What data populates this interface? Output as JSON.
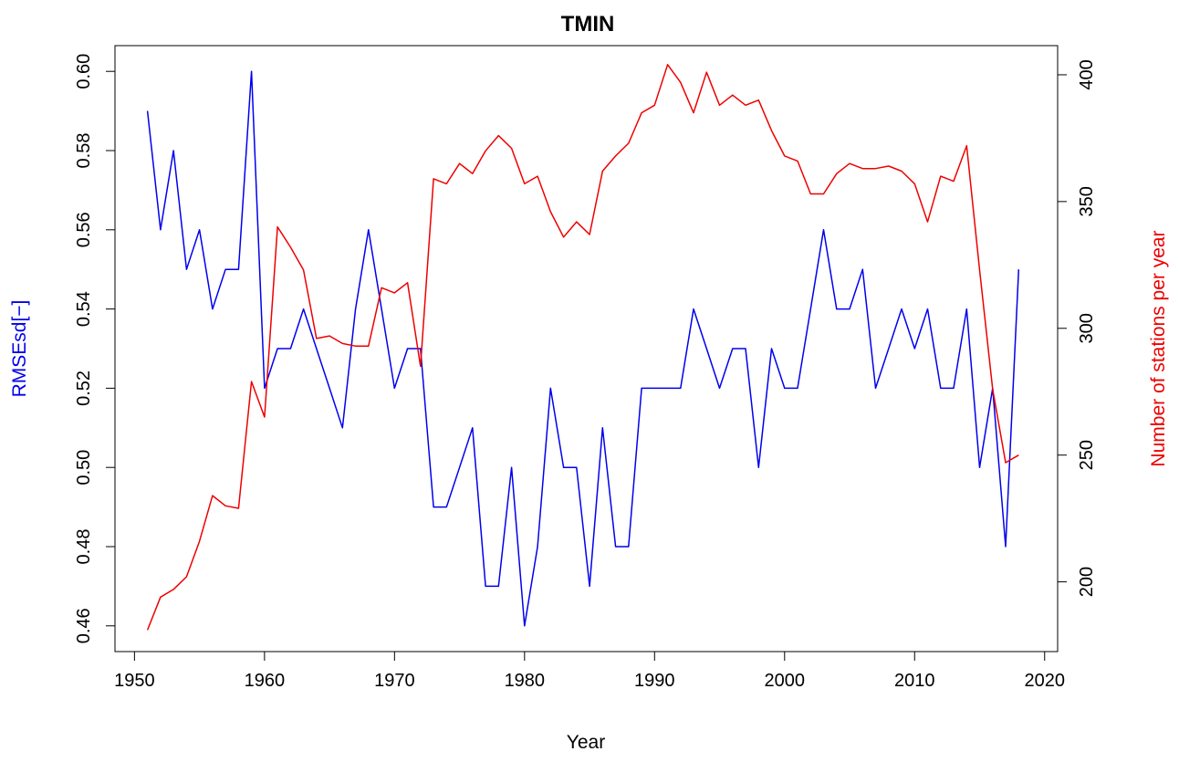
{
  "chart_data": {
    "type": "line",
    "title": "TMIN",
    "xlabel": "Year",
    "ylabel_left": "RMSEsd[−]",
    "ylabel_right": "Number of stations per year",
    "xlim": [
      1948.5,
      2021
    ],
    "xticks": [
      1950,
      1960,
      1970,
      1980,
      1990,
      2000,
      2010,
      2020
    ],
    "ylim_left": [
      0.4535,
      0.6065
    ],
    "yticks_left": [
      "0.46",
      "0.48",
      "0.50",
      "0.52",
      "0.54",
      "0.56",
      "0.58",
      "0.60"
    ],
    "ylim_right": [
      172.5,
      411.5
    ],
    "yticks_right": [
      "200",
      "250",
      "300",
      "350",
      "400"
    ],
    "grid": false,
    "series": [
      {
        "axis": "left",
        "color": "#0000ee",
        "x": [
          1951,
          1952,
          1953,
          1954,
          1955,
          1956,
          1957,
          1958,
          1959,
          1960,
          1961,
          1962,
          1963,
          1964,
          1965,
          1966,
          1967,
          1968,
          1969,
          1970,
          1971,
          1972,
          1973,
          1974,
          1975,
          1976,
          1977,
          1978,
          1979,
          1980,
          1981,
          1982,
          1983,
          1984,
          1985,
          1986,
          1987,
          1988,
          1989,
          1990,
          1991,
          1992,
          1993,
          1994,
          1995,
          1996,
          1997,
          1998,
          1999,
          2000,
          2001,
          2002,
          2003,
          2004,
          2005,
          2006,
          2007,
          2008,
          2009,
          2010,
          2011,
          2012,
          2013,
          2014,
          2015,
          2016,
          2017,
          2018
        ],
        "values": [
          0.59,
          0.56,
          0.58,
          0.55,
          0.56,
          0.54,
          0.55,
          0.55,
          0.6,
          0.52,
          0.53,
          0.53,
          0.54,
          0.53,
          0.52,
          0.51,
          0.54,
          0.56,
          0.54,
          0.52,
          0.53,
          0.53,
          0.49,
          0.49,
          0.5,
          0.51,
          0.47,
          0.47,
          0.5,
          0.46,
          0.48,
          0.52,
          0.5,
          0.5,
          0.47,
          0.51,
          0.48,
          0.48,
          0.52,
          0.52,
          0.52,
          0.52,
          0.54,
          0.53,
          0.52,
          0.53,
          0.53,
          0.5,
          0.53,
          0.52,
          0.52,
          0.54,
          0.56,
          0.54,
          0.54,
          0.55,
          0.52,
          0.53,
          0.54,
          0.53,
          0.54,
          0.52,
          0.52,
          0.54,
          0.5,
          0.52,
          0.48,
          0.55
        ]
      },
      {
        "axis": "right",
        "color": "#ee0000",
        "x": [
          1951,
          1952,
          1953,
          1954,
          1955,
          1956,
          1957,
          1958,
          1959,
          1960,
          1961,
          1962,
          1963,
          1964,
          1965,
          1966,
          1967,
          1968,
          1969,
          1970,
          1971,
          1972,
          1973,
          1974,
          1975,
          1976,
          1977,
          1978,
          1979,
          1980,
          1981,
          1982,
          1983,
          1984,
          1985,
          1986,
          1987,
          1988,
          1989,
          1990,
          1991,
          1992,
          1993,
          1994,
          1995,
          1996,
          1997,
          1998,
          1999,
          2000,
          2001,
          2002,
          2003,
          2004,
          2005,
          2006,
          2007,
          2008,
          2009,
          2010,
          2011,
          2012,
          2013,
          2014,
          2015,
          2016,
          2017,
          2018
        ],
        "values": [
          181,
          194,
          197,
          202,
          216,
          234,
          230,
          229,
          279,
          265,
          340,
          332,
          323,
          296,
          297,
          294,
          293,
          293,
          316,
          314,
          318,
          285,
          359,
          357,
          365,
          361,
          370,
          376,
          371,
          357,
          360,
          346,
          336,
          342,
          337,
          362,
          368,
          373,
          385,
          388,
          404,
          397,
          385,
          401,
          388,
          392,
          388,
          390,
          378,
          368,
          366,
          353,
          353,
          361,
          365,
          363,
          363,
          364,
          362,
          357,
          342,
          360,
          358,
          372,
          323,
          276,
          247,
          250
        ]
      }
    ]
  }
}
